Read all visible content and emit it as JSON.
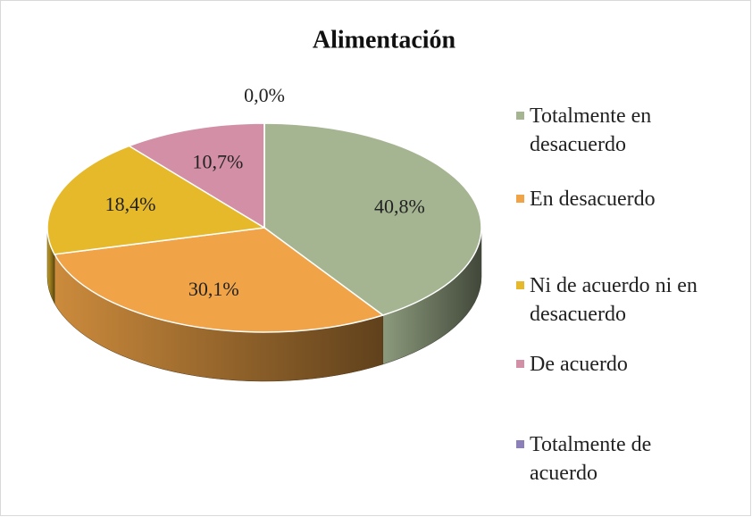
{
  "chart_data": {
    "type": "pie",
    "title": "Alimentación",
    "categories": [
      "Totalmente en desacuerdo",
      "En desacuerdo",
      "Ni de acuerdo ni en desacuerdo",
      "De acuerdo",
      "Totalmente de acuerdo"
    ],
    "values": [
      40.8,
      30.1,
      18.4,
      10.7,
      0.0
    ],
    "value_labels": [
      "40,8%",
      "30,1%",
      "18,4%",
      "10,7%",
      "0,0%"
    ],
    "colors": [
      "#a5b592",
      "#f0a347",
      "#e6b92a",
      "#d38fa5",
      "#8d7fb8"
    ],
    "legend": "right"
  }
}
